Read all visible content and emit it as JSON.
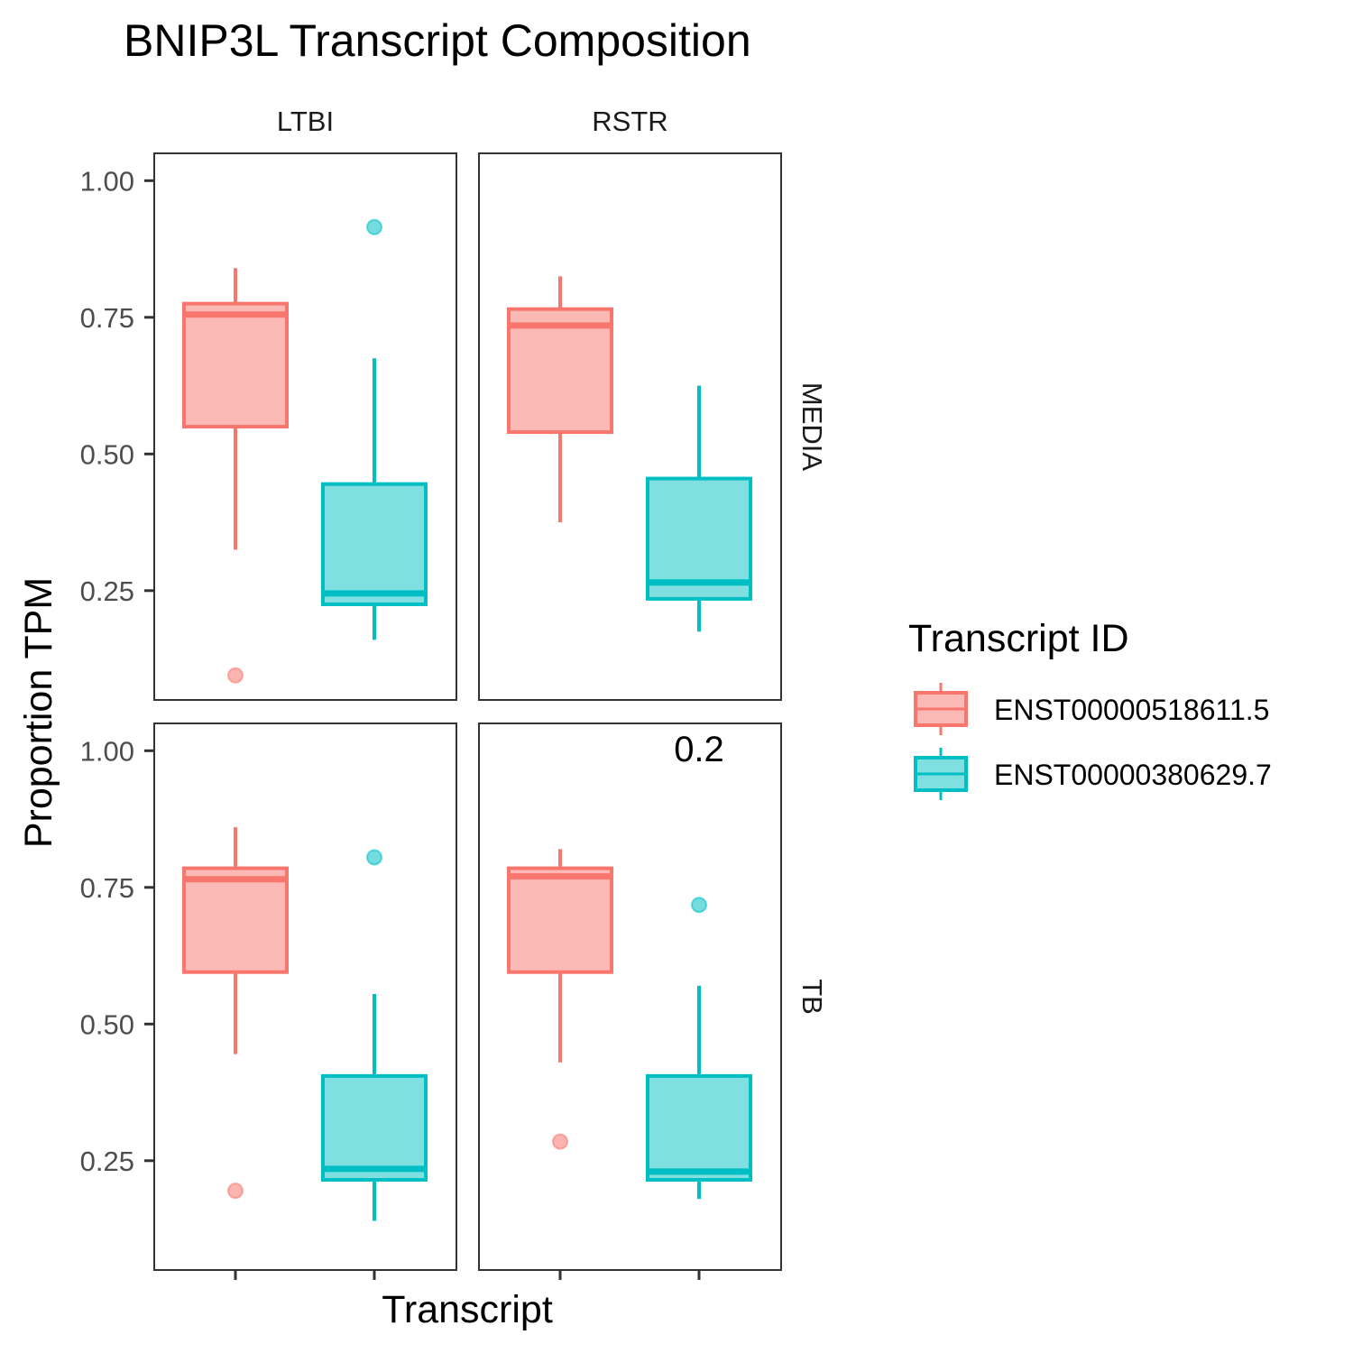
{
  "chart_data": {
    "type": "box",
    "title": "BNIP3L Transcript Composition",
    "xlabel": "Transcript",
    "ylabel": "Proportion TPM",
    "ylim": [
      0.05,
      1.05
    ],
    "yticks": [
      "0.25",
      "0.50",
      "0.75",
      "1.00"
    ],
    "ytick_values": [
      0.25,
      0.5,
      0.75,
      1.0
    ],
    "facet_cols": [
      "LTBI",
      "RSTR"
    ],
    "facet_rows": [
      "MEDIA",
      "TB"
    ],
    "legend": {
      "title": "Transcript ID",
      "position": "right",
      "items": [
        {
          "label": "ENST00000518611.5",
          "color": "#F8766D"
        },
        {
          "label": "ENST00000380629.7",
          "color": "#00BFC4"
        }
      ]
    },
    "series_colors": [
      "#F8766D",
      "#00BFC4"
    ],
    "panels": [
      {
        "col": "LTBI",
        "row": "MEDIA",
        "boxes": [
          {
            "transcript": "ENST00000518611.5",
            "whisker_low": 0.325,
            "q1": 0.55,
            "median": 0.755,
            "q3": 0.775,
            "whisker_high": 0.84,
            "outliers": [
              0.095
            ]
          },
          {
            "transcript": "ENST00000380629.7",
            "whisker_low": 0.16,
            "q1": 0.225,
            "median": 0.245,
            "q3": 0.445,
            "whisker_high": 0.675,
            "outliers": [
              0.915
            ]
          }
        ]
      },
      {
        "col": "RSTR",
        "row": "MEDIA",
        "boxes": [
          {
            "transcript": "ENST00000518611.5",
            "whisker_low": 0.375,
            "q1": 0.54,
            "median": 0.735,
            "q3": 0.765,
            "whisker_high": 0.825,
            "outliers": []
          },
          {
            "transcript": "ENST00000380629.7",
            "whisker_low": 0.175,
            "q1": 0.235,
            "median": 0.265,
            "q3": 0.455,
            "whisker_high": 0.625,
            "outliers": []
          }
        ]
      },
      {
        "col": "LTBI",
        "row": "TB",
        "boxes": [
          {
            "transcript": "ENST00000518611.5",
            "whisker_low": 0.445,
            "q1": 0.595,
            "median": 0.765,
            "q3": 0.785,
            "whisker_high": 0.86,
            "outliers": [
              0.195
            ]
          },
          {
            "transcript": "ENST00000380629.7",
            "whisker_low": 0.14,
            "q1": 0.215,
            "median": 0.235,
            "q3": 0.405,
            "whisker_high": 0.555,
            "outliers": [
              0.805
            ]
          }
        ]
      },
      {
        "col": "RSTR",
        "row": "TB",
        "boxes": [
          {
            "transcript": "ENST00000518611.5",
            "whisker_low": 0.43,
            "q1": 0.595,
            "median": 0.77,
            "q3": 0.785,
            "whisker_high": 0.82,
            "outliers": [
              0.285
            ]
          },
          {
            "transcript": "ENST00000380629.7",
            "whisker_low": 0.18,
            "q1": 0.215,
            "median": 0.23,
            "q3": 0.405,
            "whisker_high": 0.57,
            "outliers": [
              0.718
            ]
          }
        ],
        "annotation": "0.2"
      }
    ]
  }
}
